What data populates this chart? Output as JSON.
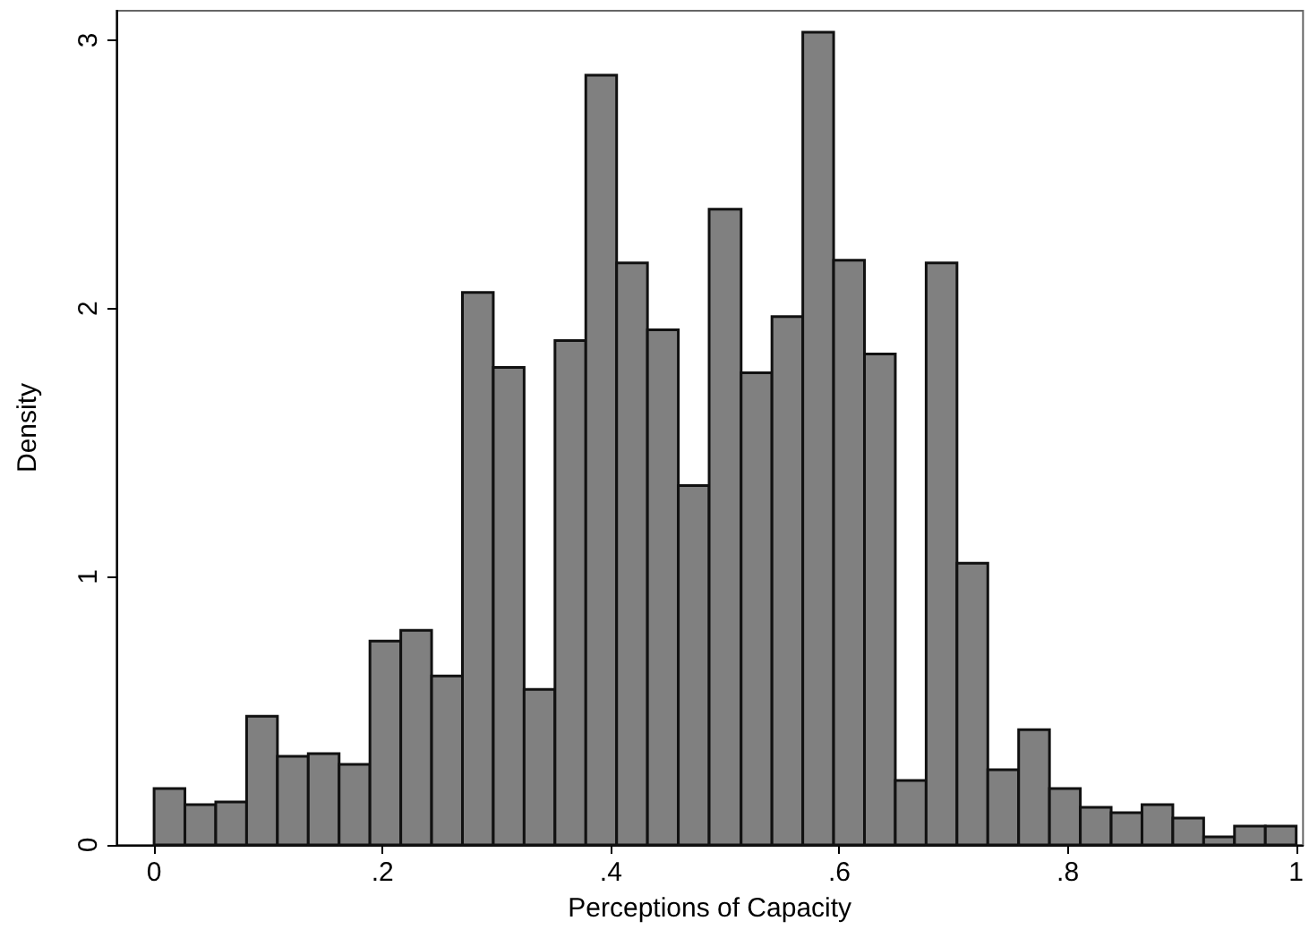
{
  "chart_data": {
    "type": "histogram",
    "xlabel": "Perceptions of Capacity",
    "ylabel": "Density",
    "color": "#808080",
    "bins": [
      0,
      0.027,
      0.054,
      0.081,
      0.108,
      0.135,
      0.162,
      0.189,
      0.216,
      0.243,
      0.27,
      0.297,
      0.324,
      0.351,
      0.378,
      0.405,
      0.432,
      0.459,
      0.486,
      0.514,
      0.541,
      0.568,
      0.595,
      0.622,
      0.649,
      0.676,
      0.703,
      0.73,
      0.757,
      0.784,
      0.811,
      0.838,
      0.865,
      0.892,
      0.919,
      0.946,
      0.973,
      1
    ],
    "values": [
      0.21,
      0.15,
      0.16,
      0.48,
      0.33,
      0.34,
      0.3,
      0.76,
      0.8,
      0.63,
      2.06,
      1.78,
      0.58,
      1.88,
      2.87,
      2.17,
      1.92,
      1.34,
      2.37,
      1.76,
      1.97,
      3.03,
      2.18,
      1.83,
      0.24,
      2.17,
      1.05,
      0.28,
      0.43,
      0.21,
      0.14,
      0.12,
      0.15,
      0.1,
      0.03,
      0.07,
      0.07
    ],
    "xlim": [
      -0.033,
      1.006
    ],
    "xticks": [
      0,
      {
        "value": 0.2,
        "label": ".2"
      },
      {
        "value": 0.4,
        "label": ".4"
      },
      {
        "value": 0.6,
        "label": ".6"
      },
      {
        "value": 0.8,
        "label": ".8"
      },
      1
    ],
    "ylim": [
      0,
      3.11
    ],
    "yticks": [
      0,
      1,
      2,
      3
    ],
    "grid": false
  }
}
